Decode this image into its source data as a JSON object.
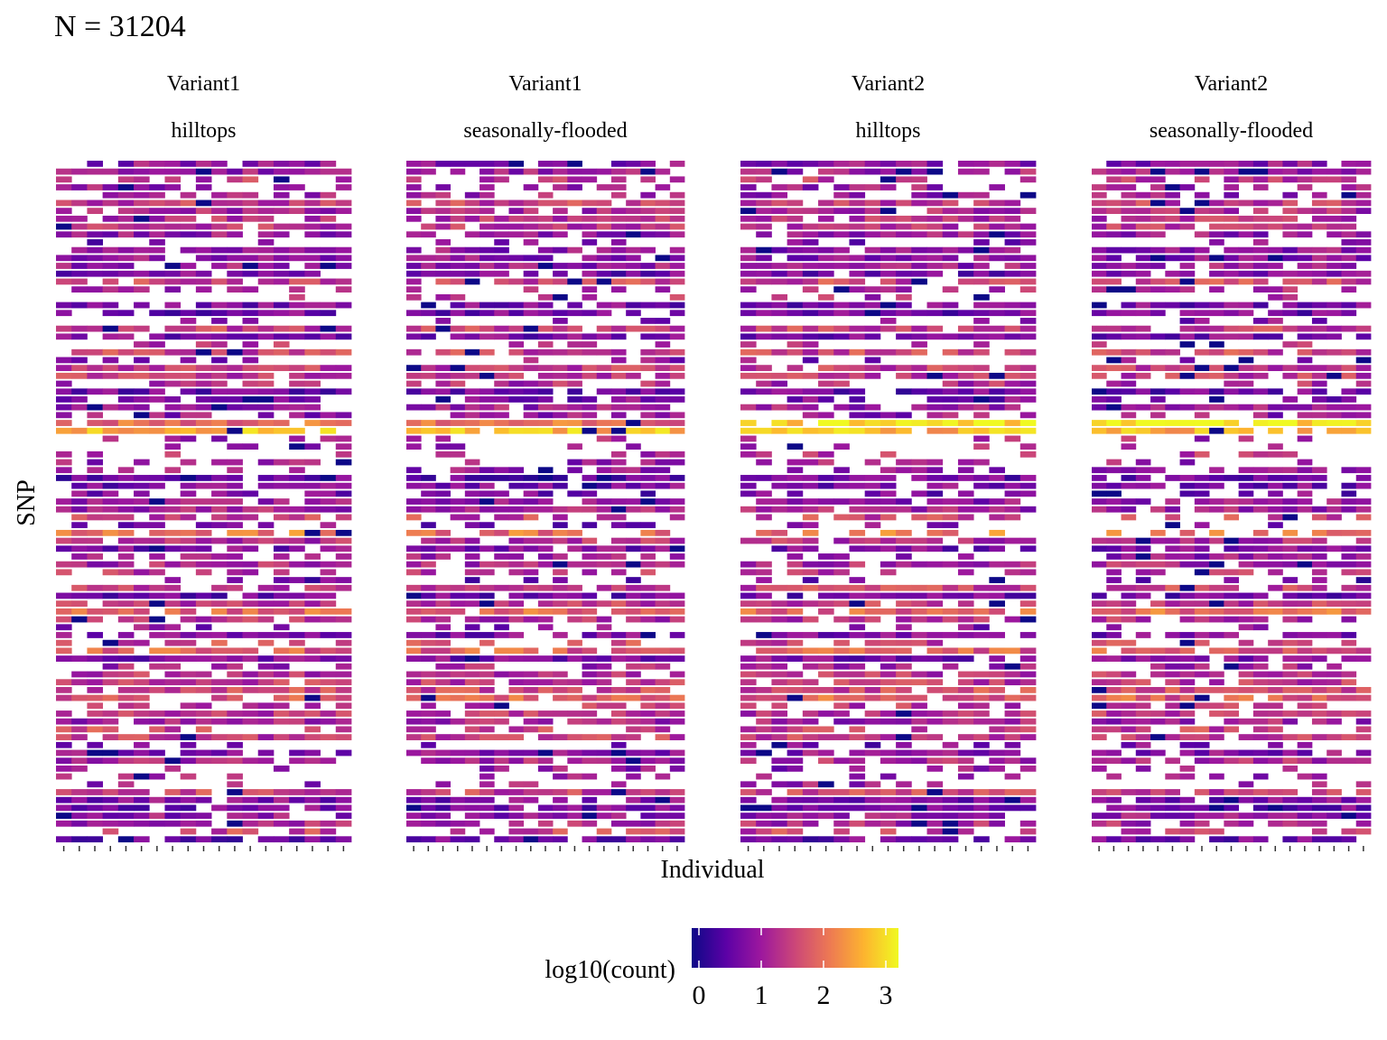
{
  "chart_data": {
    "type": "heatmap",
    "title": "N = 31204",
    "xlabel": "Individual",
    "ylabel": "SNP",
    "facets": [
      {
        "row1": "Variant1",
        "row2": "hilltops"
      },
      {
        "row1": "Variant1",
        "row2": "seasonally-flooded"
      },
      {
        "row1": "Variant2",
        "row2": "hilltops"
      },
      {
        "row1": "Variant2",
        "row2": "seasonally-flooded"
      }
    ],
    "n_individuals": 19,
    "n_snps": 87,
    "legend": {
      "title": "log10(count)",
      "ticks": [
        0,
        1,
        2,
        3
      ],
      "range": [
        0,
        3.1
      ],
      "position": "bottom",
      "colors": [
        "#0d0887",
        "#5c01a6",
        "#9c179e",
        "#cc4778",
        "#ed7953",
        "#fdb42f",
        "#f0f921"
      ]
    },
    "note": "Cell values are unlabelled; grid shows per-individual, per-SNP log10 counts with missing cells blank."
  }
}
